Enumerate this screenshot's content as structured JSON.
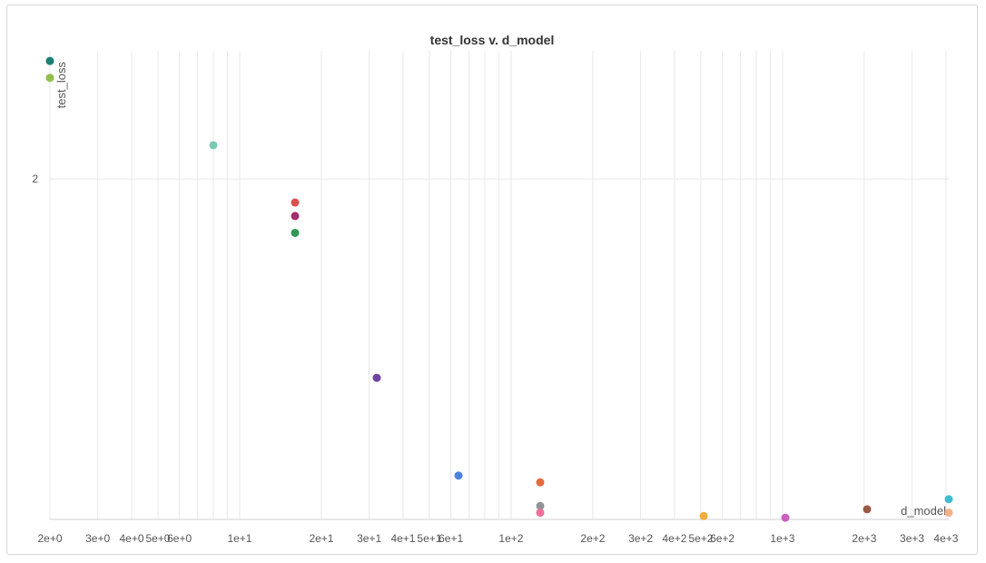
{
  "chart_data": {
    "type": "scatter",
    "title": "test_loss v. d_model",
    "xlabel": "d_model",
    "ylabel": "test_loss",
    "xscale": "log",
    "xlim": [
      2,
      4096
    ],
    "ylim": [
      0.99,
      2.38
    ],
    "grid": true,
    "y_ticks": [
      {
        "value": 2,
        "label": "2"
      }
    ],
    "x_ticks": [
      {
        "value": 2,
        "label": "2e+0"
      },
      {
        "value": 3,
        "label": "3e+0"
      },
      {
        "value": 4,
        "label": "4e+0"
      },
      {
        "value": 5,
        "label": "5e+0"
      },
      {
        "value": 6,
        "label": "6e+0"
      },
      {
        "value": 10,
        "label": "1e+1"
      },
      {
        "value": 20,
        "label": "2e+1"
      },
      {
        "value": 30,
        "label": "3e+1"
      },
      {
        "value": 40,
        "label": "4e+1"
      },
      {
        "value": 50,
        "label": "5e+1"
      },
      {
        "value": 60,
        "label": "6e+1"
      },
      {
        "value": 100,
        "label": "1e+2"
      },
      {
        "value": 200,
        "label": "2e+2"
      },
      {
        "value": 300,
        "label": "3e+2"
      },
      {
        "value": 400,
        "label": "4e+2"
      },
      {
        "value": 500,
        "label": "5e+2"
      },
      {
        "value": 600,
        "label": "6e+2"
      },
      {
        "value": 1000,
        "label": "1e+3"
      },
      {
        "value": 2000,
        "label": "2e+3"
      },
      {
        "value": 3000,
        "label": "3e+3"
      },
      {
        "value": 4000,
        "label": "4e+3"
      }
    ],
    "points": [
      {
        "x": 2,
        "y": 2.35,
        "color": "#1a7f74"
      },
      {
        "x": 2,
        "y": 2.3,
        "color": "#8fc04a"
      },
      {
        "x": 8,
        "y": 2.1,
        "color": "#79cbb5"
      },
      {
        "x": 16,
        "y": 1.93,
        "color": "#db4f4f"
      },
      {
        "x": 16,
        "y": 1.89,
        "color": "#a32c6b"
      },
      {
        "x": 16,
        "y": 1.84,
        "color": "#2f9955"
      },
      {
        "x": 32,
        "y": 1.41,
        "color": "#7045a1"
      },
      {
        "x": 64,
        "y": 1.12,
        "color": "#4b82dc"
      },
      {
        "x": 128,
        "y": 1.1,
        "color": "#e46b3d"
      },
      {
        "x": 128,
        "y": 1.03,
        "color": "#8f9497"
      },
      {
        "x": 128,
        "y": 1.01,
        "color": "#ee7199"
      },
      {
        "x": 512,
        "y": 1.0,
        "color": "#f1ab3c"
      },
      {
        "x": 1024,
        "y": 0.995,
        "color": "#c95fbe"
      },
      {
        "x": 2048,
        "y": 1.02,
        "color": "#995a43"
      },
      {
        "x": 4096,
        "y": 1.05,
        "color": "#3fbcd0"
      },
      {
        "x": 4096,
        "y": 1.01,
        "color": "#f7b089"
      }
    ]
  }
}
